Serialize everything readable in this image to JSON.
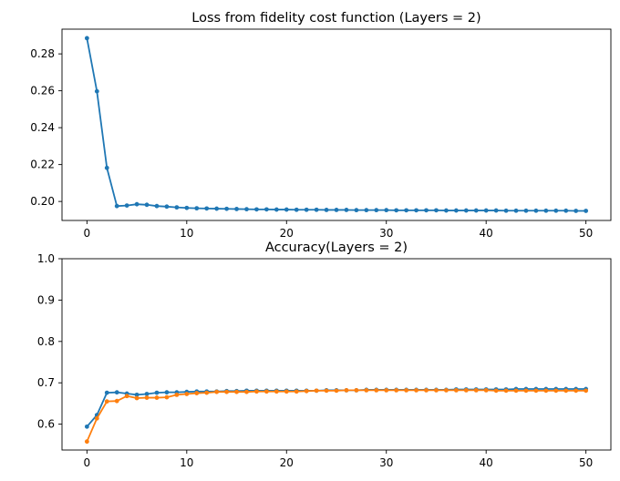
{
  "chart_data": [
    {
      "type": "line",
      "title": "Loss from fidelity cost function (Layers = 2)",
      "xlabel": "",
      "ylabel": "",
      "xlim": [
        -2.5,
        52.5
      ],
      "ylim": [
        0.1897,
        0.2934
      ],
      "xticks": [
        0,
        10,
        20,
        30,
        40,
        50
      ],
      "yticks": [
        0.2,
        0.22,
        0.24,
        0.26,
        0.28
      ],
      "ytick_labels": [
        "0.20",
        "0.22",
        "0.24",
        "0.26",
        "0.28"
      ],
      "marker": "dot",
      "grid": false,
      "series": [
        {
          "color": "#1f77b4",
          "x": [
            0,
            1,
            2,
            3,
            4,
            5,
            6,
            7,
            8,
            9,
            10,
            11,
            12,
            13,
            14,
            15,
            16,
            17,
            18,
            19,
            20,
            21,
            22,
            23,
            24,
            25,
            26,
            27,
            28,
            29,
            30,
            31,
            32,
            33,
            34,
            35,
            36,
            37,
            38,
            39,
            40,
            41,
            42,
            43,
            44,
            45,
            46,
            47,
            48,
            49,
            50
          ],
          "values": [
            0.2885,
            0.2597,
            0.2182,
            0.1975,
            0.1978,
            0.1985,
            0.1982,
            0.1975,
            0.1972,
            0.1968,
            0.1965,
            0.1963,
            0.1962,
            0.1961,
            0.196,
            0.1959,
            0.1958,
            0.1957,
            0.1957,
            0.1956,
            0.1956,
            0.1955,
            0.1955,
            0.1955,
            0.1954,
            0.1954,
            0.1954,
            0.1953,
            0.1953,
            0.1953,
            0.1953,
            0.1952,
            0.1952,
            0.1952,
            0.1952,
            0.1952,
            0.1951,
            0.1951,
            0.1951,
            0.1951,
            0.1951,
            0.1951,
            0.195,
            0.195,
            0.195,
            0.195,
            0.195,
            0.195,
            0.195,
            0.1949,
            0.1949
          ]
        }
      ]
    },
    {
      "type": "line",
      "title": "Accuracy(Layers = 2)",
      "xlabel": "",
      "ylabel": "",
      "xlim": [
        -2.5,
        52.5
      ],
      "ylim": [
        0.5375,
        1.0
      ],
      "xticks": [
        0,
        10,
        20,
        30,
        40,
        50
      ],
      "yticks": [
        0.6,
        0.7,
        0.8,
        0.9,
        1.0
      ],
      "ytick_labels": [
        "0.6",
        "0.7",
        "0.8",
        "0.9",
        "1.0"
      ],
      "marker": "dot",
      "grid": false,
      "series": [
        {
          "color": "#1f77b4",
          "x": [
            0,
            1,
            2,
            3,
            4,
            5,
            6,
            7,
            8,
            9,
            10,
            11,
            12,
            13,
            14,
            15,
            16,
            17,
            18,
            19,
            20,
            21,
            22,
            23,
            24,
            25,
            26,
            27,
            28,
            29,
            30,
            31,
            32,
            33,
            34,
            35,
            36,
            37,
            38,
            39,
            40,
            41,
            42,
            43,
            44,
            45,
            46,
            47,
            48,
            49,
            50
          ],
          "values": [
            0.594,
            0.622,
            0.676,
            0.677,
            0.674,
            0.671,
            0.673,
            0.676,
            0.677,
            0.677,
            0.678,
            0.679,
            0.679,
            0.679,
            0.68,
            0.68,
            0.681,
            0.681,
            0.681,
            0.681,
            0.681,
            0.681,
            0.681,
            0.681,
            0.682,
            0.682,
            0.682,
            0.682,
            0.683,
            0.683,
            0.683,
            0.683,
            0.683,
            0.683,
            0.683,
            0.683,
            0.683,
            0.684,
            0.684,
            0.684,
            0.684,
            0.684,
            0.684,
            0.685,
            0.685,
            0.685,
            0.685,
            0.685,
            0.685,
            0.685,
            0.685
          ]
        },
        {
          "color": "#ff7f0e",
          "x": [
            0,
            1,
            2,
            3,
            4,
            5,
            6,
            7,
            8,
            9,
            10,
            11,
            12,
            13,
            14,
            15,
            16,
            17,
            18,
            19,
            20,
            21,
            22,
            23,
            24,
            25,
            26,
            27,
            28,
            29,
            30,
            31,
            32,
            33,
            34,
            35,
            36,
            37,
            38,
            39,
            40,
            41,
            42,
            43,
            44,
            45,
            46,
            47,
            48,
            49,
            50
          ],
          "values": [
            0.558,
            0.614,
            0.655,
            0.656,
            0.668,
            0.663,
            0.664,
            0.664,
            0.665,
            0.671,
            0.673,
            0.675,
            0.676,
            0.678,
            0.678,
            0.678,
            0.678,
            0.679,
            0.679,
            0.679,
            0.679,
            0.679,
            0.68,
            0.681,
            0.681,
            0.681,
            0.682,
            0.682,
            0.682,
            0.682,
            0.682,
            0.682,
            0.682,
            0.682,
            0.682,
            0.682,
            0.682,
            0.682,
            0.682,
            0.682,
            0.682,
            0.681,
            0.681,
            0.681,
            0.681,
            0.681,
            0.681,
            0.681,
            0.681,
            0.681,
            0.681
          ]
        }
      ]
    }
  ]
}
